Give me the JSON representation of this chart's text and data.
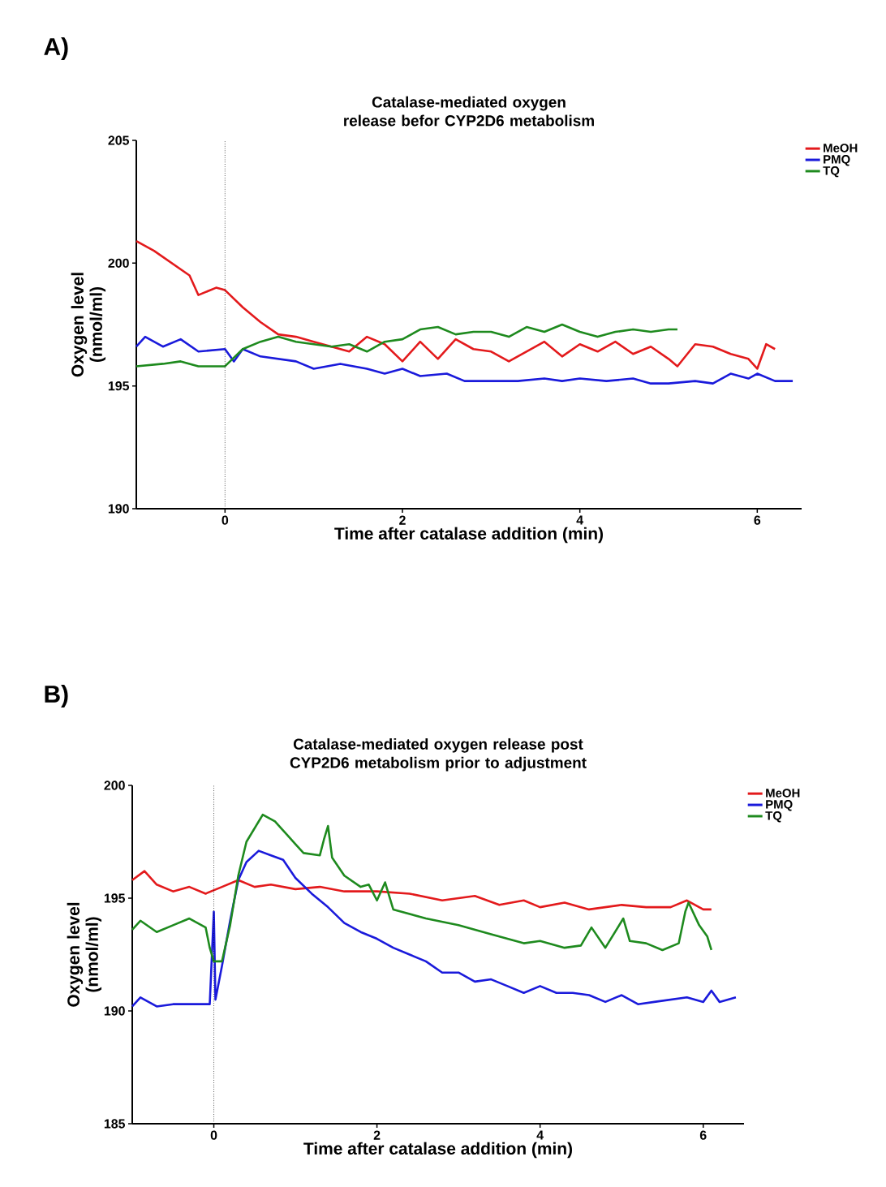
{
  "chart_data": [
    {
      "type": "line",
      "title": "Catalase-mediated oxygen release befor CYP2D6 metabolism",
      "xlabel": "Time after catalase addition (min)",
      "ylabel": "Oxygen level (nmol/ml)",
      "annotations": [
        "A)"
      ],
      "xlim": [
        -1,
        6.5
      ],
      "xticks": [
        0,
        2,
        4,
        6
      ],
      "ylim": [
        190,
        205
      ],
      "yticks": [
        190,
        195,
        200,
        205
      ],
      "legend": "top right",
      "ref_lines": [
        {
          "axis": "x",
          "value": 0,
          "line_style": "dotted"
        }
      ],
      "series": [
        {
          "name": "MeOH",
          "color": "#e31a1c",
          "x": [
            -1,
            -0.8,
            -0.6,
            -0.4,
            -0.3,
            -0.1,
            0,
            0.2,
            0.4,
            0.6,
            0.8,
            1,
            1.2,
            1.4,
            1.6,
            1.8,
            2,
            2.2,
            2.4,
            2.6,
            2.8,
            3,
            3.2,
            3.4,
            3.6,
            3.8,
            4,
            4.2,
            4.4,
            4.6,
            4.8,
            5,
            5.1,
            5.3,
            5.5,
            5.7,
            5.9,
            6,
            6.1,
            6.2
          ],
          "values": [
            200.9,
            200.5,
            200,
            199.5,
            198.7,
            199,
            198.9,
            198.2,
            197.6,
            197.1,
            197,
            196.8,
            196.6,
            196.4,
            197,
            196.7,
            196,
            196.8,
            196.1,
            196.9,
            196.5,
            196.4,
            196,
            196.4,
            196.8,
            196.2,
            196.7,
            196.4,
            196.8,
            196.3,
            196.6,
            196.1,
            195.8,
            196.7,
            196.6,
            196.3,
            196.1,
            195.7,
            196.7,
            196.5
          ]
        },
        {
          "name": "PMQ",
          "color": "#1a1adb",
          "x": [
            -1,
            -0.9,
            -0.7,
            -0.5,
            -0.3,
            0,
            0.1,
            0.2,
            0.4,
            0.8,
            1,
            1.3,
            1.6,
            1.8,
            2,
            2.2,
            2.5,
            2.7,
            3,
            3.3,
            3.6,
            3.8,
            4,
            4.3,
            4.6,
            4.8,
            5,
            5.3,
            5.5,
            5.7,
            5.9,
            6,
            6.2,
            6.4
          ],
          "values": [
            196.6,
            197,
            196.6,
            196.9,
            196.4,
            196.5,
            196,
            196.5,
            196.2,
            196,
            195.7,
            195.9,
            195.7,
            195.5,
            195.7,
            195.4,
            195.5,
            195.2,
            195.2,
            195.2,
            195.3,
            195.2,
            195.3,
            195.2,
            195.3,
            195.1,
            195.1,
            195.2,
            195.1,
            195.5,
            195.3,
            195.5,
            195.2,
            195.2
          ]
        },
        {
          "name": "TQ",
          "color": "#1e8a1e",
          "x": [
            -1,
            -0.7,
            -0.5,
            -0.3,
            0,
            0.2,
            0.4,
            0.6,
            0.8,
            1,
            1.2,
            1.4,
            1.6,
            1.8,
            2,
            2.2,
            2.4,
            2.6,
            2.8,
            3,
            3.2,
            3.4,
            3.6,
            3.8,
            4,
            4.2,
            4.4,
            4.6,
            4.8,
            5,
            5.1
          ],
          "values": [
            195.8,
            195.9,
            196,
            195.8,
            195.8,
            196.5,
            196.8,
            197,
            196.8,
            196.7,
            196.6,
            196.7,
            196.4,
            196.8,
            196.9,
            197.3,
            197.4,
            197.1,
            197.2,
            197.2,
            197,
            197.4,
            197.2,
            197.5,
            197.2,
            197,
            197.2,
            197.3,
            197.2,
            197.3,
            197.3
          ]
        }
      ]
    },
    {
      "type": "line",
      "title": "Catalase-mediated oxygen release post CYP2D6 metabolism prior to adjustment",
      "xlabel": "Time after catalase addition (min)",
      "ylabel": "Oxygen level (nmol/ml)",
      "annotations": [
        "B)"
      ],
      "xlim": [
        -1,
        6.5
      ],
      "xticks": [
        0,
        2,
        4,
        6
      ],
      "ylim": [
        185,
        200
      ],
      "yticks": [
        185,
        190,
        195,
        200
      ],
      "legend": "top right",
      "ref_lines": [
        {
          "axis": "x",
          "value": 0,
          "line_style": "dotted"
        }
      ],
      "series": [
        {
          "name": "MeOH",
          "color": "#e31a1c",
          "x": [
            -1,
            -0.85,
            -0.7,
            -0.5,
            -0.3,
            -0.1,
            0.1,
            0.3,
            0.5,
            0.7,
            1,
            1.3,
            1.6,
            2,
            2.4,
            2.8,
            3.2,
            3.5,
            3.8,
            4,
            4.3,
            4.6,
            5,
            5.3,
            5.6,
            5.8,
            6,
            6.1
          ],
          "values": [
            195.8,
            196.2,
            195.6,
            195.3,
            195.5,
            195.2,
            195.5,
            195.8,
            195.5,
            195.6,
            195.4,
            195.5,
            195.3,
            195.3,
            195.2,
            194.9,
            195.1,
            194.7,
            194.9,
            194.6,
            194.8,
            194.5,
            194.7,
            194.6,
            194.6,
            194.9,
            194.5,
            194.5
          ]
        },
        {
          "name": "PMQ",
          "color": "#1a1adb",
          "x": [
            -1,
            -0.9,
            -0.7,
            -0.5,
            -0.3,
            -0.05,
            0,
            0.02,
            0.1,
            0.2,
            0.3,
            0.4,
            0.55,
            0.7,
            0.85,
            1,
            1.2,
            1.4,
            1.6,
            1.8,
            2,
            2.2,
            2.4,
            2.6,
            2.8,
            3,
            3.2,
            3.4,
            3.6,
            3.8,
            4,
            4.2,
            4.4,
            4.6,
            4.8,
            5,
            5.2,
            5.4,
            5.6,
            5.8,
            6,
            6.1,
            6.2,
            6.4
          ],
          "values": [
            190.2,
            190.6,
            190.2,
            190.3,
            190.3,
            190.3,
            194.4,
            190.5,
            192,
            194,
            195.8,
            196.6,
            197.1,
            196.9,
            196.7,
            195.9,
            195.2,
            194.6,
            193.9,
            193.5,
            193.2,
            192.8,
            192.5,
            192.2,
            191.7,
            191.7,
            191.3,
            191.4,
            191.1,
            190.8,
            191.1,
            190.8,
            190.8,
            190.7,
            190.4,
            190.7,
            190.3,
            190.4,
            190.5,
            190.6,
            190.4,
            190.9,
            190.4,
            190.6
          ]
        },
        {
          "name": "TQ",
          "color": "#1e8a1e",
          "x": [
            -1,
            -0.9,
            -0.7,
            -0.5,
            -0.3,
            -0.1,
            -0.05,
            0,
            0.1,
            0.2,
            0.3,
            0.4,
            0.55,
            0.6,
            0.75,
            0.9,
            1,
            1.1,
            1.3,
            1.35,
            1.4,
            1.45,
            1.6,
            1.8,
            1.9,
            2,
            2.1,
            2.2,
            2.6,
            3,
            3.4,
            3.8,
            4,
            4.3,
            4.5,
            4.63,
            4.8,
            5.02,
            5.1,
            5.3,
            5.5,
            5.7,
            5.78,
            5.82,
            5.95,
            6.05,
            6.1
          ],
          "values": [
            193.6,
            194,
            193.5,
            193.8,
            194.1,
            193.7,
            192.8,
            192.2,
            192.2,
            193.8,
            196,
            197.5,
            198.4,
            198.7,
            198.4,
            197.8,
            197.4,
            197,
            196.9,
            197.6,
            198.2,
            196.8,
            196,
            195.5,
            195.6,
            194.9,
            195.7,
            194.5,
            194.1,
            193.8,
            193.4,
            193,
            193.1,
            192.8,
            192.9,
            193.7,
            192.8,
            194.1,
            193.1,
            193,
            192.7,
            193,
            194.4,
            194.8,
            193.8,
            193.3,
            192.7
          ]
        }
      ]
    }
  ]
}
